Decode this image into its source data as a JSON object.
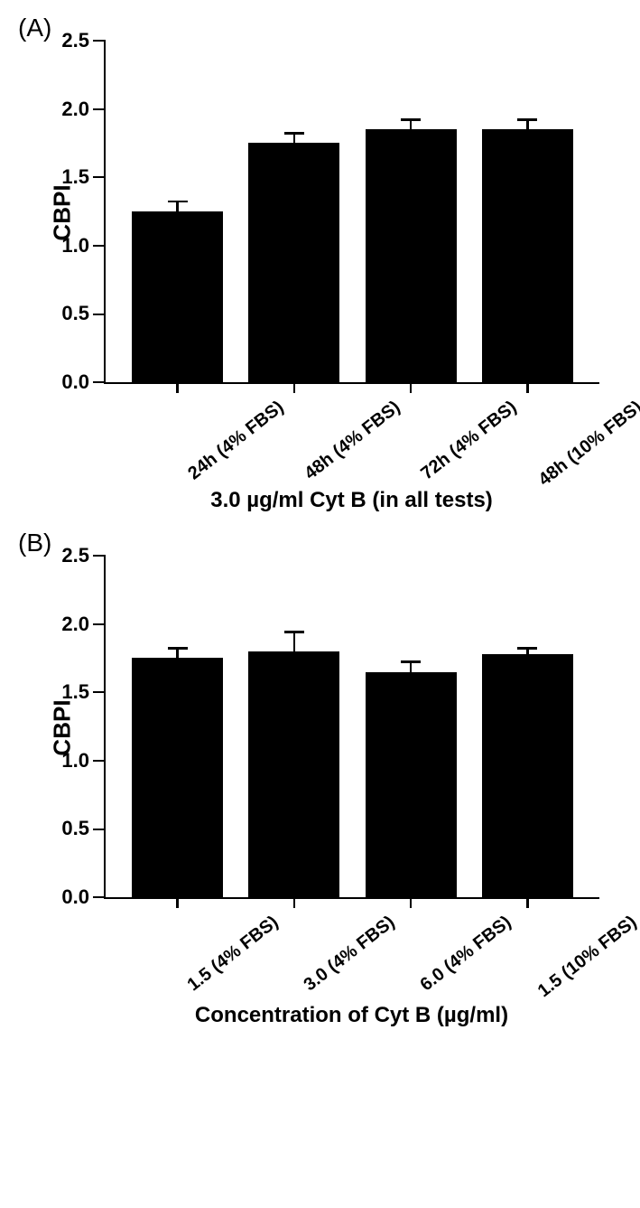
{
  "figure": {
    "background_color": "#ffffff",
    "bar_color": "#000000",
    "axis_color": "#000000",
    "font_family": "Arial",
    "panel_label_fontsize": 28,
    "tick_label_fontsize": 22,
    "axis_label_fontsize": 26,
    "xlabel_fontsize": 24,
    "xtick_rotation_deg": -38
  },
  "panelA": {
    "label": "(A)",
    "type": "bar",
    "ylabel": "CBPI",
    "xlabel": "3.0 µg/ml Cyt B (in all tests)",
    "ylim": [
      0.0,
      2.5
    ],
    "ytick_values": [
      0.0,
      0.5,
      1.0,
      1.5,
      2.0,
      2.5
    ],
    "ytick_labels": [
      "0.0",
      "0.5",
      "1.0",
      "1.5",
      "2.0",
      "2.5"
    ],
    "categories": [
      "24h (4% FBS)",
      "48h (4% FBS)",
      "72h (4% FBS)",
      "48h (10% FBS)"
    ],
    "values": [
      1.25,
      1.75,
      1.85,
      1.85
    ],
    "errors": [
      0.07,
      0.07,
      0.07,
      0.07
    ],
    "bar_width_rel": 0.78
  },
  "panelB": {
    "label": "(B)",
    "type": "bar",
    "ylabel": "CBPI",
    "xlabel": "Concentration of Cyt B (µg/ml)",
    "ylim": [
      0.0,
      2.5
    ],
    "ytick_values": [
      0.0,
      0.5,
      1.0,
      1.5,
      2.0,
      2.5
    ],
    "ytick_labels": [
      "0.0",
      "0.5",
      "1.0",
      "1.5",
      "2.0",
      "2.5"
    ],
    "categories": [
      "1.5 (4% FBS)",
      "3.0  (4% FBS)",
      "6.0 (4% FBS)",
      "1.5 (10% FBS)"
    ],
    "values": [
      1.75,
      1.8,
      1.65,
      1.78
    ],
    "errors": [
      0.07,
      0.14,
      0.07,
      0.04
    ],
    "bar_width_rel": 0.78
  }
}
